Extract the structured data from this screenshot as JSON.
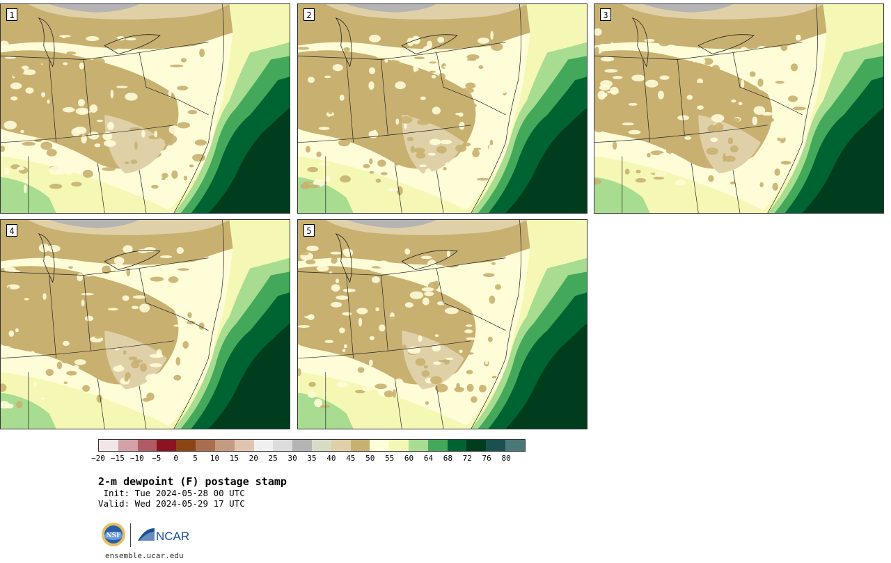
{
  "panels": [
    {
      "label": "1"
    },
    {
      "label": "2"
    },
    {
      "label": "3"
    },
    {
      "label": "4"
    },
    {
      "label": "5"
    }
  ],
  "colorbar": {
    "colors": [
      "#f2e6e6",
      "#d4a0a6",
      "#b05a64",
      "#8c1420",
      "#8b4513",
      "#a86e4e",
      "#c49a80",
      "#e0c4b0",
      "#f0f0f0",
      "#dcdcdc",
      "#b4b4b4",
      "#d8dcc4",
      "#e0d0a8",
      "#c8b070",
      "#fffcd8",
      "#f4f8b4",
      "#a8dc90",
      "#44a85a",
      "#006432",
      "#003c1e",
      "#1c5050",
      "#4a7878"
    ],
    "tick_labels": [
      "−20",
      "−15",
      "−10",
      "−5",
      "0",
      "5",
      "10",
      "15",
      "20",
      "25",
      "30",
      "35",
      "40",
      "45",
      "50",
      "55",
      "60",
      "64",
      "68",
      "72",
      "76",
      "80"
    ]
  },
  "title": "2-m dewpoint (F) postage stamp",
  "init_line": " Init: Tue 2024-05-28 00 UTC",
  "valid_line": "Valid: Wed 2024-05-29 17 UTC",
  "logos": {
    "left": "NSF",
    "right": "NCAR"
  },
  "footer_url": "ensemble.ucar.edu"
}
